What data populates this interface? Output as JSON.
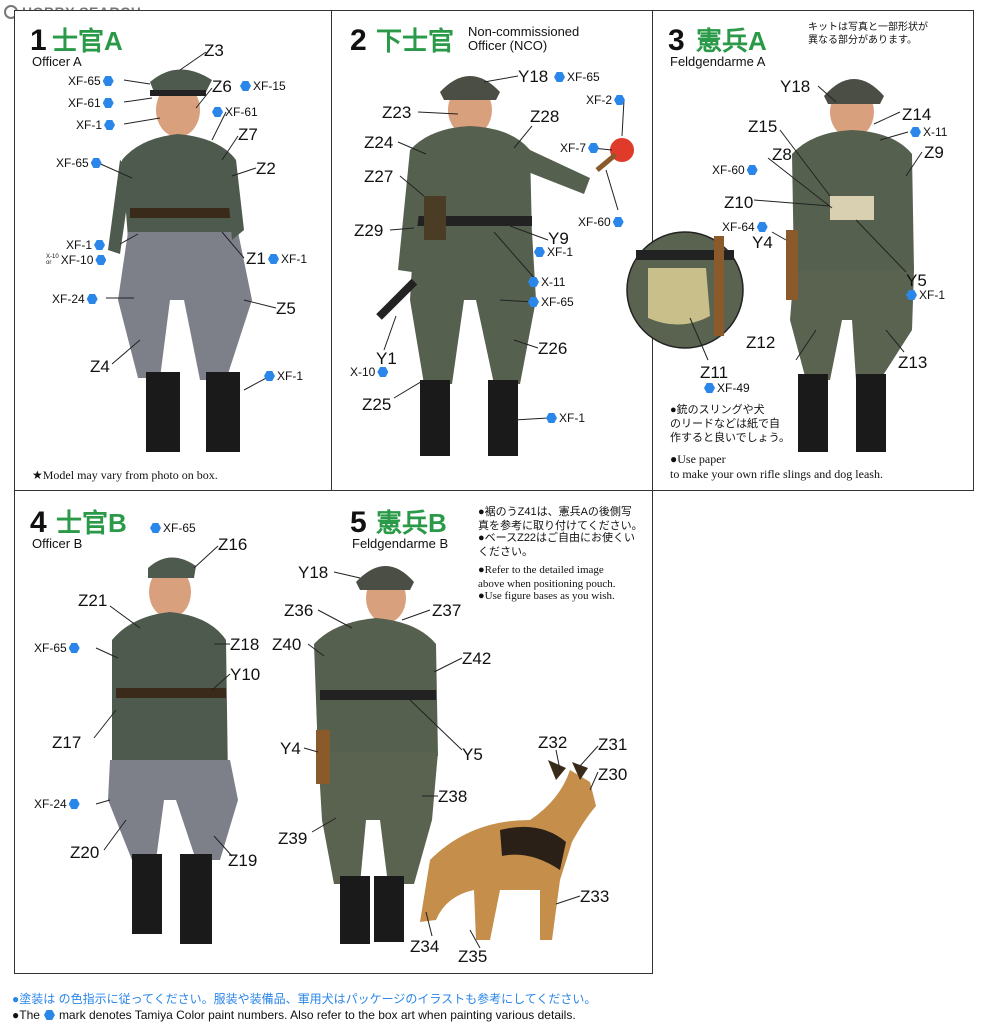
{
  "logo": {
    "text": "HOBBY SEARCH"
  },
  "colors": {
    "green": "#2a9a48",
    "blue": "#2a86e8",
    "uniform": "#4f5a4e",
    "trousers": "#7d8088",
    "boots": "#1a1a1a",
    "skin": "#d9a07e",
    "dog": "#c58e4a"
  },
  "panels": [
    {
      "num": "1",
      "jp": "士官A",
      "en": "Officer A",
      "parts": [
        "Z3",
        "Z6",
        "Z7",
        "Z2",
        "Z1",
        "Z5",
        "Z4"
      ],
      "colors": [
        "XF-65",
        "XF-61",
        "XF-1",
        "XF-15",
        "XF-61",
        "XF-65",
        "XF-1",
        "XF-10",
        "XF-1",
        "XF-24",
        "XF-1"
      ],
      "small_or": "X-10\nor",
      "note": "★Model may vary from photo on box."
    },
    {
      "num": "2",
      "jp": "下士官",
      "en": "Non-commissioned\nOfficer (NCO)",
      "parts": [
        "Y18",
        "Z23",
        "Z28",
        "Z24",
        "Z27",
        "Z29",
        "Y9",
        "Z26",
        "Y1",
        "Z25"
      ],
      "colors": [
        "XF-65",
        "XF-2",
        "XF-7",
        "XF-60",
        "XF-1",
        "X-11",
        "XF-65",
        "X-10",
        "XF-1"
      ]
    },
    {
      "num": "3",
      "jp": "憲兵A",
      "en": "Feldgendarme A",
      "parts": [
        "Y18",
        "Z14",
        "Z15",
        "Z9",
        "Z8",
        "Z10",
        "Y4",
        "Y5",
        "Z12",
        "Z13",
        "Z11"
      ],
      "colors": [
        "X-11",
        "XF-60",
        "XF-64",
        "XF-1",
        "XF-49"
      ],
      "note_jp_top": "キットは写真と一部形状が\n異なる部分があります。",
      "note_jp": "●銃のスリングや犬\nのリードなどは紙で自\n作すると良いでしょう。",
      "note_en": "●Use paper\nto make your own rifle slings and dog leash."
    },
    {
      "num": "4",
      "jp": "士官B",
      "en": "Officer B",
      "parts": [
        "Z16",
        "Z21",
        "Z18",
        "Y10",
        "Z17",
        "Z20",
        "Z19"
      ],
      "colors": [
        "XF-65",
        "XF-65",
        "XF-24"
      ]
    },
    {
      "num": "5",
      "jp": "憲兵B",
      "en": "Feldgendarme B",
      "parts": [
        "Y18",
        "Z36",
        "Z37",
        "Z40",
        "Z42",
        "Y4",
        "Y5",
        "Z38",
        "Z39",
        "Z32",
        "Z31",
        "Z30",
        "Z33",
        "Z34",
        "Z35"
      ],
      "notes": [
        "●裾のうZ41は、憲兵Aの後側写\n真を参考に取り付けてください。",
        "●ベースZ22はご自由にお使くい\nください。",
        "●Refer to the detailed image\nabove when positioning pouch.",
        "●Use figure bases as you wish."
      ]
    }
  ],
  "footer": {
    "jp": "●塗装は の色指示に従ってください。服装や装備品、軍用犬はパッケージのイラストも参考にしてください。",
    "en_a": "●The",
    "en_b": "mark denotes Tamiya Color paint numbers. Also refer to the box art when painting various details."
  }
}
